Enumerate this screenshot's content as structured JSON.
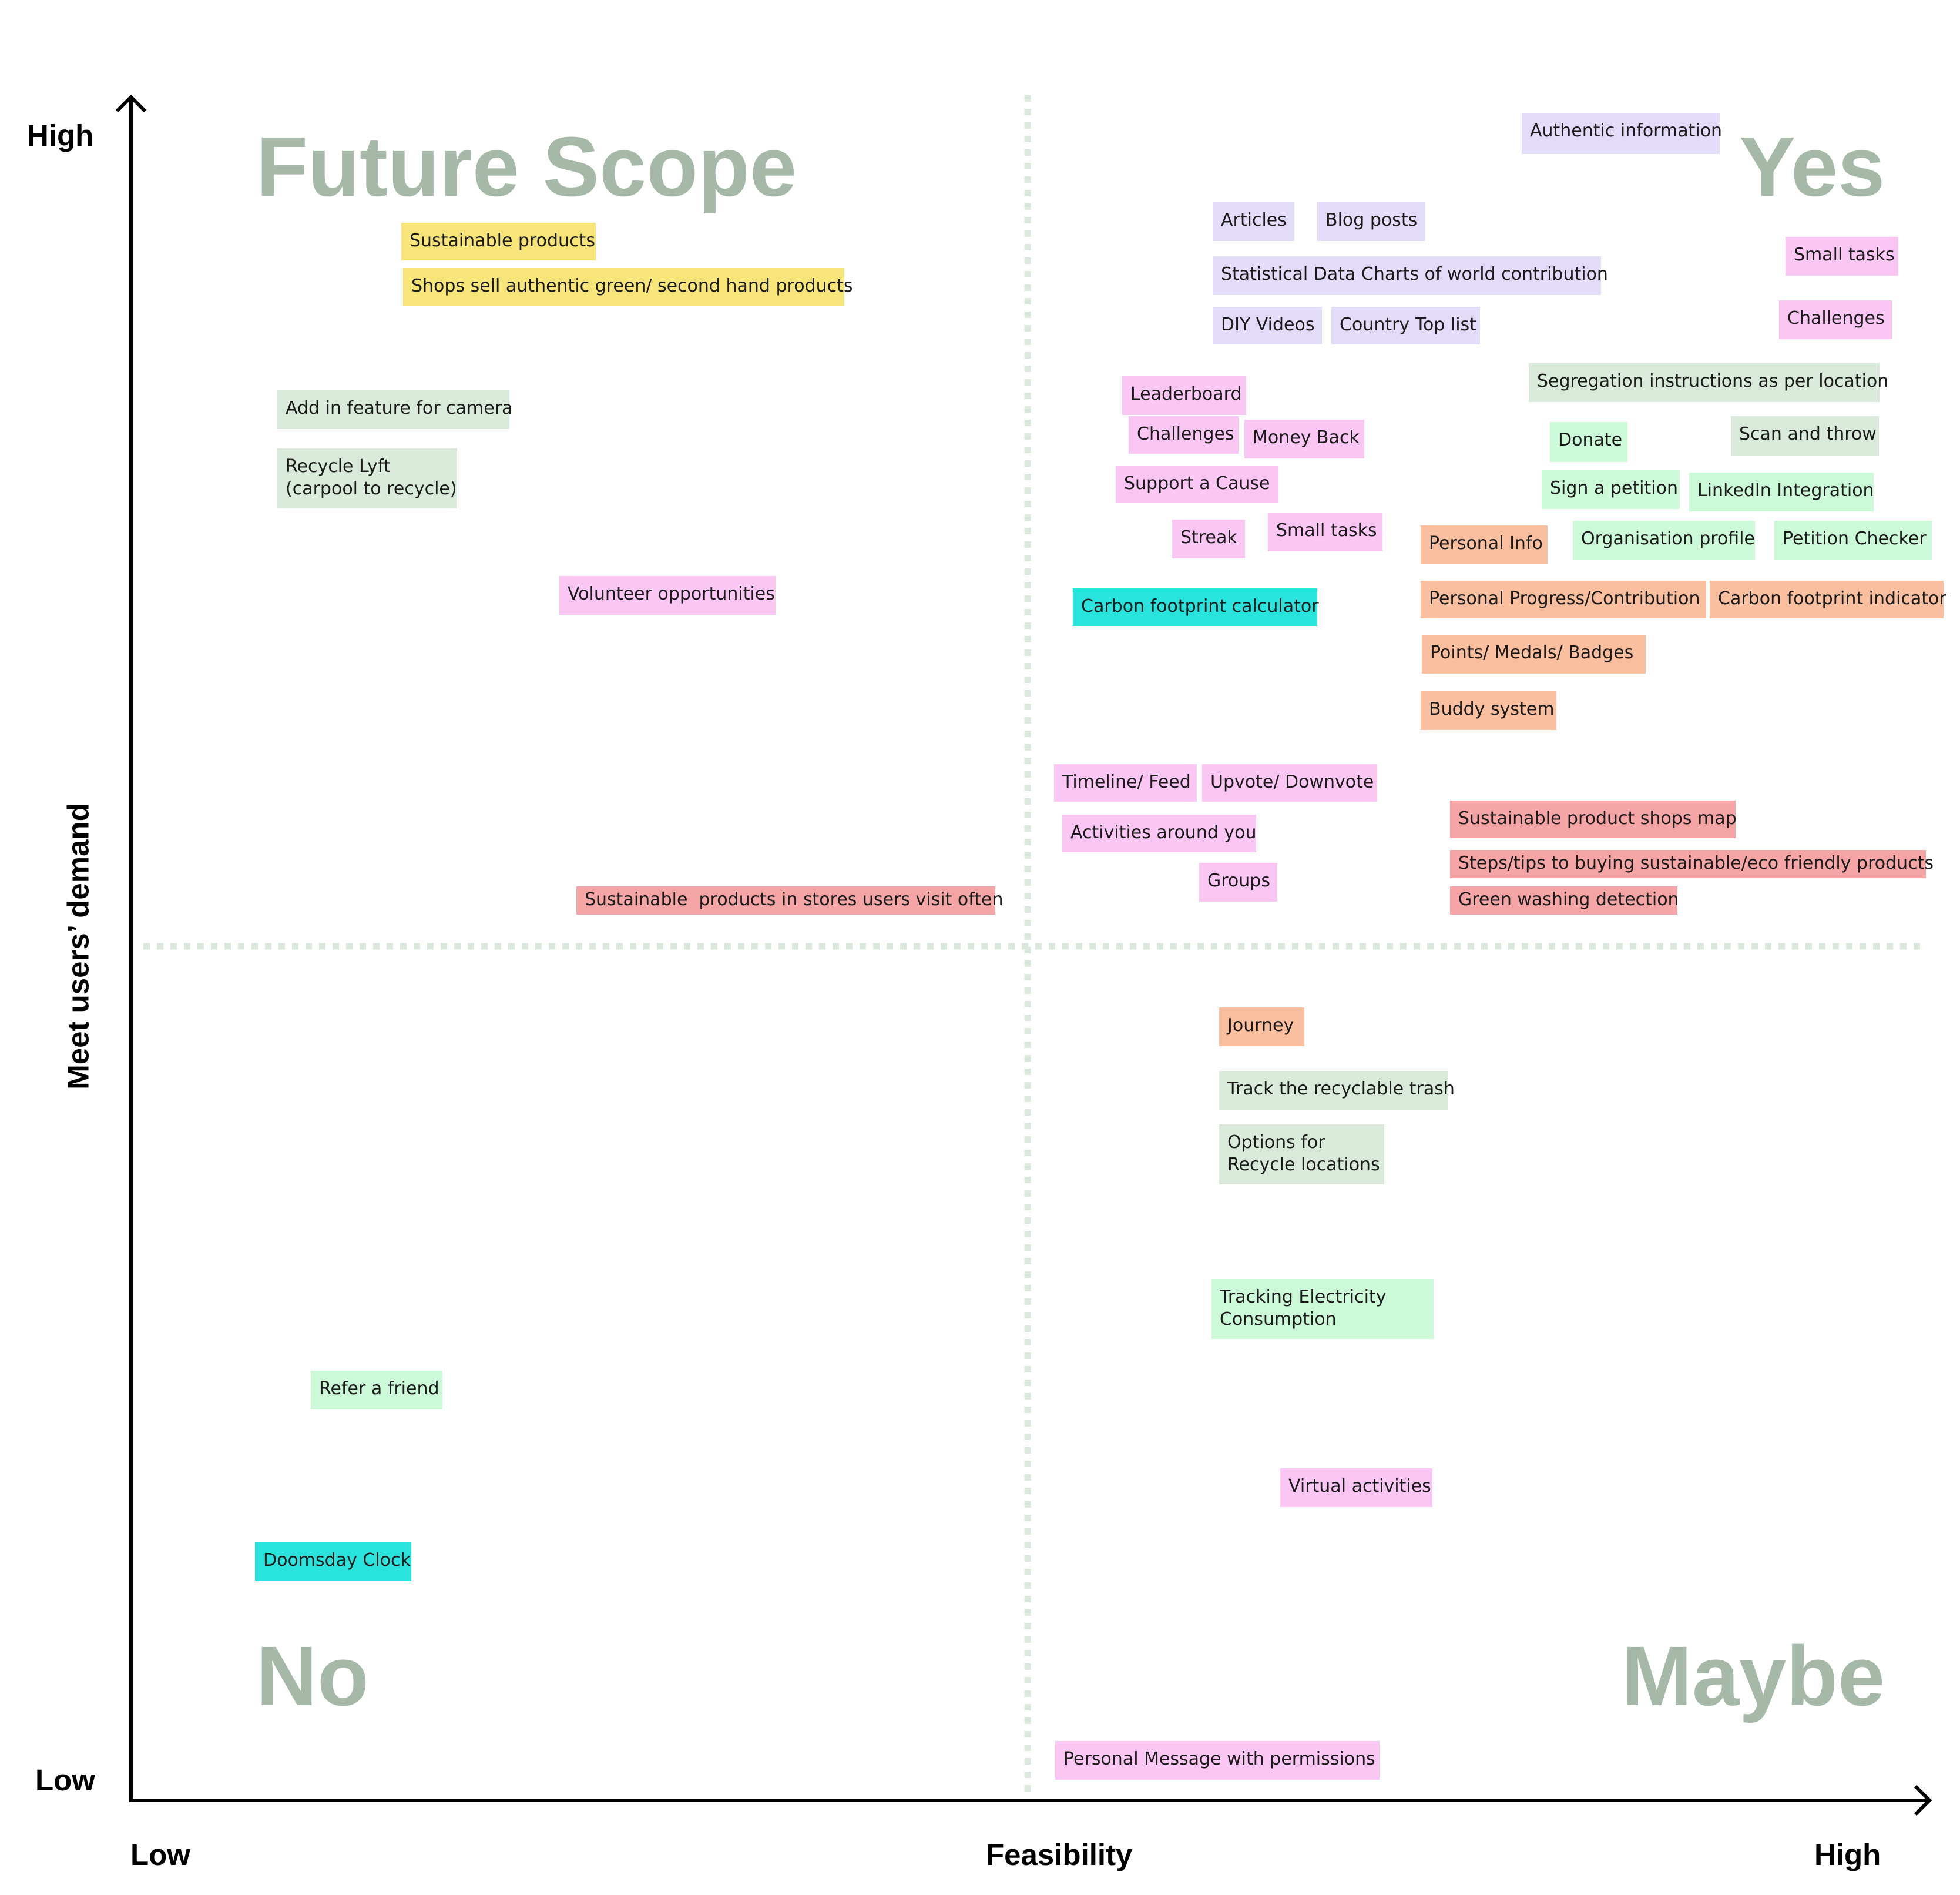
{
  "axes": {
    "y_title": "Meet users’ demand",
    "x_title": "Feasibility",
    "y_high": "High",
    "y_low": "Low",
    "x_low": "Low",
    "x_high": "High"
  },
  "quadrants": {
    "top_left": "Future Scope",
    "top_right": "Yes",
    "bottom_left": "No",
    "bottom_right": "Maybe"
  },
  "colors": {
    "axis": "#000000",
    "divider": "#dbe8dc",
    "quadrant_text": "#a6b8a7",
    "yellow": "#f8e57a",
    "mint": "#d9eadb",
    "green": "#ccf9d8",
    "lavender": "#e2dcf9",
    "pink": "#fac7f4",
    "orange": "#f9bf9f",
    "red": "#f5a5a5",
    "cyan": "#28e4dc"
  },
  "notes": [
    {
      "text": "Authentic information",
      "color": "lavender"
    },
    {
      "text": "Sustainable products",
      "color": "yellow"
    },
    {
      "text": "Shops sell authentic green/ second hand products",
      "color": "yellow"
    },
    {
      "text": "Articles",
      "color": "lavender"
    },
    {
      "text": "Blog posts",
      "color": "lavender"
    },
    {
      "text": "Statistical Data Charts of world contribution",
      "color": "lavender"
    },
    {
      "text": "DIY Videos",
      "color": "lavender"
    },
    {
      "text": "Country Top list",
      "color": "lavender"
    },
    {
      "text": "Small tasks",
      "color": "pink"
    },
    {
      "text": "Challenges",
      "color": "pink"
    },
    {
      "text": "Segregation instructions as per location",
      "color": "mint"
    },
    {
      "text": "Add in feature for camera",
      "color": "mint"
    },
    {
      "text": "Recycle Lyft\n(carpool to recycle)",
      "color": "mint"
    },
    {
      "text": "Leaderboard",
      "color": "pink"
    },
    {
      "text": "Challenges",
      "color": "pink"
    },
    {
      "text": "Money Back",
      "color": "pink"
    },
    {
      "text": "Support a Cause",
      "color": "pink"
    },
    {
      "text": "Donate",
      "color": "green"
    },
    {
      "text": "Scan and throw",
      "color": "mint"
    },
    {
      "text": "Sign a petition",
      "color": "green"
    },
    {
      "text": "LinkedIn Integration",
      "color": "green"
    },
    {
      "text": "Streak",
      "color": "pink"
    },
    {
      "text": "Small tasks",
      "color": "pink"
    },
    {
      "text": "Personal Info",
      "color": "orange"
    },
    {
      "text": "Organisation profile",
      "color": "green"
    },
    {
      "text": "Petition Checker",
      "color": "green"
    },
    {
      "text": "Volunteer opportunities",
      "color": "pink"
    },
    {
      "text": "Carbon footprint calculator",
      "color": "cyan"
    },
    {
      "text": "Personal Progress/Contribution",
      "color": "orange"
    },
    {
      "text": "Carbon footprint indicator",
      "color": "orange"
    },
    {
      "text": "Points/ Medals/ Badges",
      "color": "orange"
    },
    {
      "text": "Buddy system",
      "color": "orange"
    },
    {
      "text": "Timeline/ Feed",
      "color": "pink"
    },
    {
      "text": "Upvote/ Downvote",
      "color": "pink"
    },
    {
      "text": "Sustainable product shops map",
      "color": "red"
    },
    {
      "text": "Activities around you",
      "color": "pink"
    },
    {
      "text": "Steps/tips to buying sustainable/eco friendly products",
      "color": "red"
    },
    {
      "text": "Groups",
      "color": "pink"
    },
    {
      "text": "Sustainable  products in stores users visit often",
      "color": "red"
    },
    {
      "text": "Green washing detection",
      "color": "red"
    },
    {
      "text": "Journey",
      "color": "orange"
    },
    {
      "text": "Track the recyclable trash",
      "color": "mint"
    },
    {
      "text": "Options for\nRecycle locations",
      "color": "mint"
    },
    {
      "text": "Tracking Electricity\nConsumption",
      "color": "green"
    },
    {
      "text": "Refer a friend",
      "color": "green"
    },
    {
      "text": "Virtual activities",
      "color": "pink"
    },
    {
      "text": "Doomsday Clock",
      "color": "cyan"
    },
    {
      "text": "Personal Message with permissions",
      "color": "pink"
    }
  ]
}
